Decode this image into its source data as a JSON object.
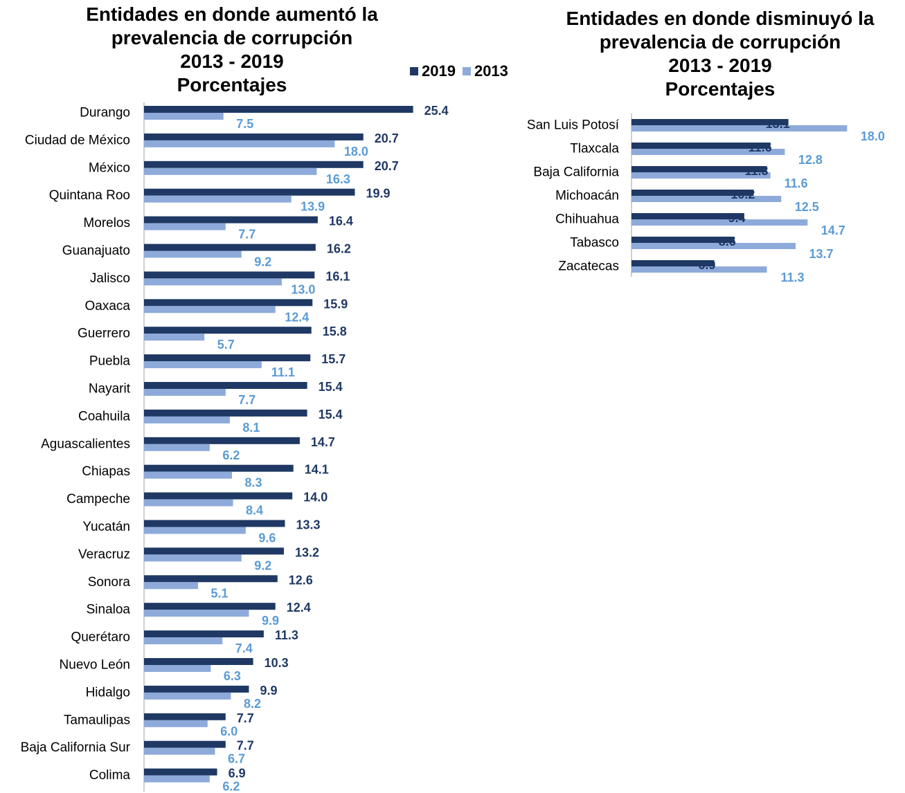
{
  "legend": {
    "series_2019": "2019",
    "series_2013": "2013"
  },
  "colors": {
    "series_2019_bar": "#1f3864",
    "series_2013_bar": "#8eaadb",
    "label_2019": "#1f3864",
    "label_2013": "#5b9bd5",
    "axis": "#bfbfbf"
  },
  "chart_data": [
    {
      "type": "bar",
      "orientation": "horizontal",
      "title_lines": [
        "Entidades en donde aumentó la",
        "prevalencia de corrupción",
        "2013 - 2019",
        "Porcentajes"
      ],
      "categories": [
        "Durango",
        "Ciudad de México",
        "México",
        "Quintana Roo",
        "Morelos",
        "Guanajuato",
        "Jalisco",
        "Oaxaca",
        "Guerrero",
        "Puebla",
        "Nayarit",
        "Coahuila",
        "Aguascalientes",
        "Chiapas",
        "Campeche",
        "Yucatán",
        "Veracruz",
        "Sonora",
        "Sinaloa",
        "Querétaro",
        "Nuevo León",
        "Hidalgo",
        "Tamaulipas",
        "Baja California Sur",
        "Colima"
      ],
      "series": [
        {
          "name": "2019",
          "values": [
            25.4,
            20.7,
            20.7,
            19.9,
            16.4,
            16.2,
            16.1,
            15.9,
            15.8,
            15.7,
            15.4,
            15.4,
            14.7,
            14.1,
            14.0,
            13.3,
            13.2,
            12.6,
            12.4,
            11.3,
            10.3,
            9.9,
            7.7,
            7.7,
            6.9
          ]
        },
        {
          "name": "2013",
          "values": [
            7.5,
            18.0,
            16.3,
            13.9,
            7.7,
            9.2,
            13.0,
            12.4,
            5.7,
            11.1,
            7.7,
            8.1,
            6.2,
            8.3,
            8.4,
            9.6,
            9.2,
            5.1,
            9.9,
            7.4,
            6.3,
            8.2,
            6.0,
            6.7,
            6.2
          ]
        }
      ],
      "value_labels_2019": [
        "25.4",
        "20.7",
        "20.7",
        "19.9",
        "16.4",
        "16.2",
        "16.1",
        "15.9",
        "15.8",
        "15.7",
        "15.4",
        "15.4",
        "14.7",
        "14.1",
        "14.0",
        "13.3",
        "13.2",
        "12.6",
        "12.4",
        "11.3",
        "10.3",
        "9.9",
        "7.7",
        "7.7",
        "6.9"
      ],
      "value_labels_2013": [
        "7.5",
        "18.0",
        "16.3",
        "13.9",
        "7.7",
        "9.2",
        "13.0",
        "12.4",
        "5.7",
        "11.1",
        "7.7",
        "8.1",
        "6.2",
        "8.3",
        "8.4",
        "9.6",
        "9.2",
        "5.1",
        "9.9",
        "7.4",
        "6.3",
        "8.2",
        "6.0",
        "6.7",
        "6.2"
      ],
      "legend": "top-right",
      "grid": false
    },
    {
      "type": "bar",
      "orientation": "horizontal",
      "title_lines": [
        "Entidades en donde disminuyó la",
        "prevalencia de corrupción",
        "2013 - 2019",
        "Porcentajes"
      ],
      "categories": [
        "San Luis Potosí",
        "Tlaxcala",
        "Baja California",
        "Michoacán",
        "Chihuahua",
        "Tabasco",
        "Zacatecas"
      ],
      "series": [
        {
          "name": "2019",
          "values": [
            13.1,
            11.6,
            11.3,
            10.2,
            9.4,
            8.6,
            6.9
          ]
        },
        {
          "name": "2013",
          "values": [
            18.0,
            12.8,
            11.6,
            12.5,
            14.7,
            13.7,
            11.3
          ]
        }
      ],
      "value_labels_2019": [
        "13.1",
        "11.6",
        "11.3",
        "10.2",
        "9.4",
        "8.6",
        "6.9"
      ],
      "value_labels_2013": [
        "18.0",
        "12.8",
        "11.6",
        "12.5",
        "14.7",
        "13.7",
        "11.3"
      ],
      "grid": false
    }
  ]
}
